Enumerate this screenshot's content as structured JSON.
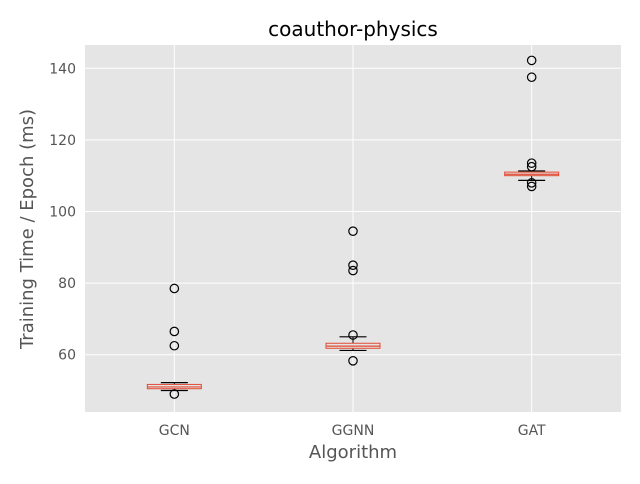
{
  "chart_data": {
    "type": "box",
    "title": "coauthor-physics",
    "xlabel": "Algorithm",
    "ylabel": "Training Time / Epoch (ms)",
    "categories": [
      "GCN",
      "GGNN",
      "GAT"
    ],
    "ylim": [
      44,
      146.5
    ],
    "yticks": [
      60,
      80,
      100,
      120,
      140
    ],
    "ytick_labels": [
      "60",
      "80",
      "100",
      "120",
      "140"
    ],
    "grid": true,
    "style": "ggplot",
    "colors": {
      "plot_background": "#e5e5e5",
      "grid": "#ffffff",
      "median": "#e24a33",
      "box_edge": "#e24a33",
      "box_fill": "#e5e5e5",
      "whisker": "#000000",
      "flier": "#000000",
      "tick_label": "#555555"
    },
    "boxes": [
      {
        "category": "GCN",
        "whisker_low": 50.0,
        "q1": 50.5,
        "median": 51.0,
        "q3": 51.7,
        "whisker_high": 52.2,
        "fliers": [
          78.5,
          66.5,
          62.5,
          49.0
        ]
      },
      {
        "category": "GGNN",
        "whisker_low": 61.2,
        "q1": 61.8,
        "median": 62.4,
        "q3": 63.2,
        "whisker_high": 65.0,
        "fliers": [
          94.5,
          85.0,
          83.5,
          65.5,
          58.3
        ]
      },
      {
        "category": "GAT",
        "whisker_low": 108.7,
        "q1": 110.0,
        "median": 110.4,
        "q3": 111.0,
        "whisker_high": 111.3,
        "fliers": [
          142.2,
          137.5,
          113.5,
          112.5,
          108.0,
          107.0
        ]
      }
    ]
  }
}
